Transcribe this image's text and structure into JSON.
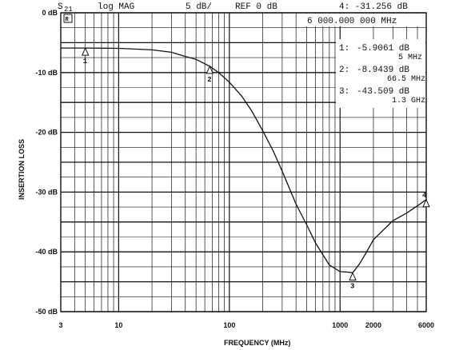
{
  "header": {
    "param": "S",
    "param_sub": "21",
    "format": "log MAG",
    "scale": "5 dB/",
    "ref": "REF 0 dB",
    "active_marker": "4: -31.256 dB",
    "ref_box": "R",
    "readout_freq": "6 000.000 000 MHz"
  },
  "markers_readout": [
    {
      "label": "1:",
      "value": "-5.9061 dB",
      "freq": "5 MHz"
    },
    {
      "label": "2:",
      "value": "-8.9439 dB",
      "freq": "66.5 MHz"
    },
    {
      "label": "3:",
      "value": "-43.509 dB",
      "freq": "1.3 GHz"
    }
  ],
  "chart_data": {
    "type": "line",
    "title": "",
    "xlabel": "FREQUENCY (MHz)",
    "ylabel": "INSERTION LOSS",
    "xscale": "log",
    "xlim": [
      3,
      6000
    ],
    "ylim": [
      -50,
      0
    ],
    "grid": true,
    "yticks": [
      {
        "value": 0,
        "label": "0 dB"
      },
      {
        "value": -10,
        "label": "-10 dB"
      },
      {
        "value": -20,
        "label": "-20 dB"
      },
      {
        "value": -30,
        "label": "-30 dB"
      },
      {
        "value": -40,
        "label": "-40 dB"
      },
      {
        "value": -50,
        "label": "-50 dB"
      }
    ],
    "xticks": [
      {
        "value": 3,
        "label": "3"
      },
      {
        "value": 10,
        "label": "10"
      },
      {
        "value": 100,
        "label": "100"
      },
      {
        "value": 1000,
        "label": "1000"
      },
      {
        "value": 2000,
        "label": "2000"
      },
      {
        "value": 6000,
        "label": "6000"
      }
    ],
    "series": [
      {
        "x": [
          3,
          5,
          10,
          20,
          30,
          40,
          50,
          66.5,
          80,
          100,
          130,
          160,
          200,
          250,
          300,
          400,
          500,
          600,
          700,
          800,
          1000,
          1200,
          1300,
          1500,
          1700,
          2000,
          2500,
          3000,
          4000,
          5000,
          6000
        ],
        "y": [
          -5.9,
          -5.9,
          -5.95,
          -6.2,
          -6.6,
          -7.3,
          -7.8,
          -8.94,
          -10.0,
          -11.6,
          -14.0,
          -16.5,
          -19.7,
          -23.2,
          -26.5,
          -32.0,
          -35.5,
          -38.5,
          -40.5,
          -42.2,
          -43.3,
          -43.4,
          -43.5,
          -42.0,
          -40.3,
          -38.0,
          -36.2,
          -34.8,
          -33.5,
          -32.3,
          -31.26
        ]
      }
    ],
    "markers": [
      {
        "id": "1",
        "x": 5,
        "y": -5.9061
      },
      {
        "id": "2",
        "x": 66.5,
        "y": -8.9439
      },
      {
        "id": "3",
        "x": 1300,
        "y": -43.509
      },
      {
        "id": "4",
        "x": 6000,
        "y": -31.256
      }
    ]
  }
}
